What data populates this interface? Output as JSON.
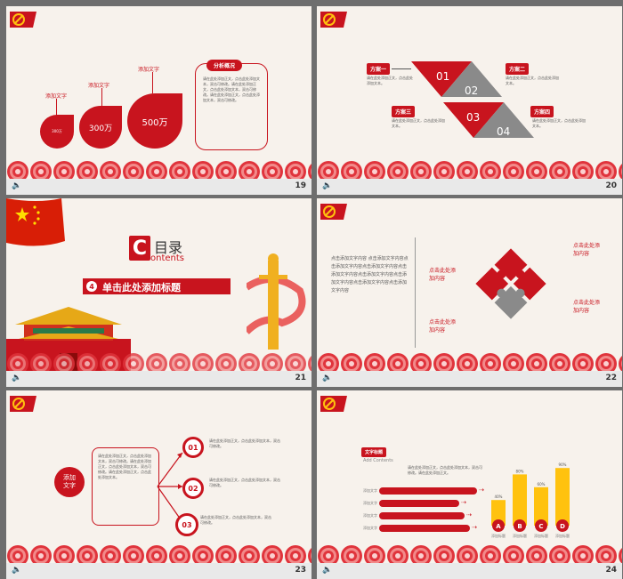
{
  "slides": [
    {
      "number": "19",
      "labels": [
        "添加文字",
        "添加文字",
        "添加文字"
      ],
      "values": [
        "300万",
        "300万",
        "500万"
      ],
      "box_title": "分析概况",
      "box_text": "请在此处添加正文，点击此处添加文本，双击可修改。请在此处添加正文，点击此处添加文本，双击可修改。请在此处添加正文，点击此处添加文本，双击可修改。"
    },
    {
      "number": "20",
      "schemes": [
        "方案一",
        "方案二",
        "方案三",
        "方案四"
      ],
      "digits": [
        "01",
        "02",
        "03",
        "04"
      ],
      "text": "请在此处添加正文，点击此处添加文本。"
    },
    {
      "number": "21",
      "toc_title": "目录",
      "toc_sub": "ontents",
      "toc_c": "C",
      "item_num": "4",
      "item_title": "单击此处添加标题"
    },
    {
      "number": "22",
      "left_text": "点击添加文字内容 点击添加文字内容点击添加文字内容点击添加文字内容点击添加文字内容点击添加文字内容点击添加文字内容点击添加文字内容点击添加文字内容",
      "callouts": [
        "点击此处添加内容",
        "点击此处添加内容",
        "点击此处添加内容",
        "点击此处添加内容"
      ]
    },
    {
      "number": "23",
      "center_label": "添加文字",
      "center_text": "请在此处添加正文，点击此处添加文本，双击可修改。请在此处添加正文，点击此处添加文本，双击可修改。请在此处添加正文，点击此处添加文本。",
      "digits": [
        "01",
        "02",
        "03"
      ],
      "item_text": "请在此处添加正文，点击此处添加文本，双击可修改。"
    },
    {
      "number": "24",
      "tag": "文字标题",
      "subtitle": "Add Contents",
      "desc": "请在此处添加正文，点击此处添加文本，双击可修改。请在此处添加正文。",
      "bar_labels": [
        "添加文字",
        "添加文字",
        "添加文字",
        "添加文字"
      ],
      "chart_letters": [
        "A",
        "B",
        "C",
        "D"
      ],
      "chart_pcts": [
        "40%",
        "80%",
        "60%",
        "90%"
      ],
      "chart_names": [
        "添加标题",
        "添加标题",
        "添加标题",
        "添加标题"
      ]
    }
  ],
  "chart_data": {
    "type": "bar",
    "categories": [
      "A",
      "B",
      "C",
      "D"
    ],
    "values": [
      40,
      80,
      60,
      90
    ],
    "data_labels": [
      "40%",
      "80%",
      "60%",
      "90%"
    ],
    "colors": {
      "bar": "#ffc20e",
      "badge": "#c8141e"
    }
  },
  "colors": {
    "red": "#c8141e",
    "gray": "#8a8a8a",
    "gold": "#ffc20e",
    "bg": "#f7f2ec"
  },
  "icons": [
    "hammer-sickle-icon",
    "speaker-icon",
    "china-flag-icon",
    "tiananmen-icon",
    "huabiao-icon",
    "puzzle-icon",
    "cloud-pattern-icon"
  ]
}
